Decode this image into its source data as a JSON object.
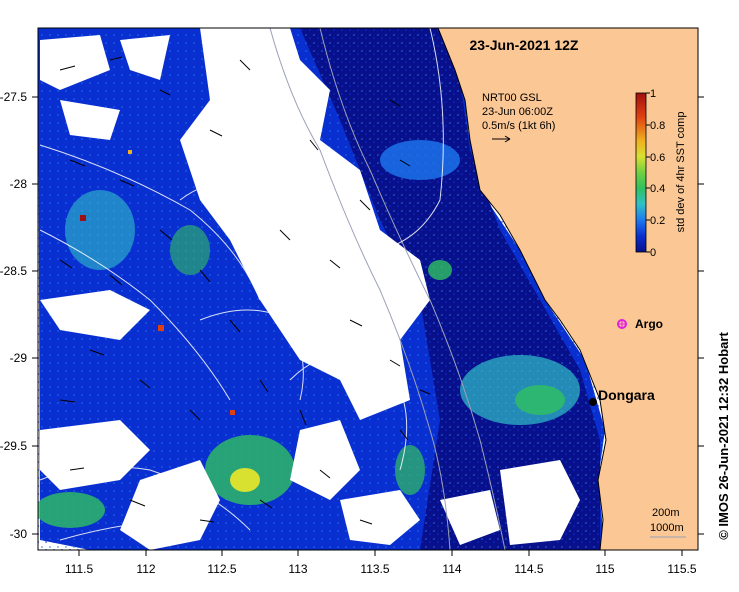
{
  "map": {
    "title": "23-Jun-2021 12Z",
    "credit": "© IMOS 26-Jun-2021 12:32 Hobart",
    "x_ticks": [
      "111.5",
      "112",
      "112.5",
      "113",
      "113.5",
      "114",
      "114.5",
      "115",
      "115.5"
    ],
    "y_ticks": [
      "-27.5",
      "-28",
      "-28.5",
      "-29",
      "-29.5",
      "-30"
    ],
    "current_legend": {
      "line1": "NRT00 GSL",
      "line2": "23-Jun 06:00Z",
      "line3": "0.5m/s (1kt 6h)"
    },
    "colorbar": {
      "label": "std dev of 4hr SST comp",
      "ticks": [
        "1",
        "0.8",
        "0.6",
        "0.4",
        "0.2",
        "0"
      ]
    },
    "places": {
      "argo": "Argo",
      "dongara": "Dongara"
    },
    "depth_legend": {
      "contour1": "200m",
      "contour2": "1000m"
    },
    "colors": {
      "land": "#FBC794",
      "high_sst_stdev": "#A01010",
      "low_sst_stdev": "#08108C",
      "argo_marker": "#E020E0"
    }
  }
}
